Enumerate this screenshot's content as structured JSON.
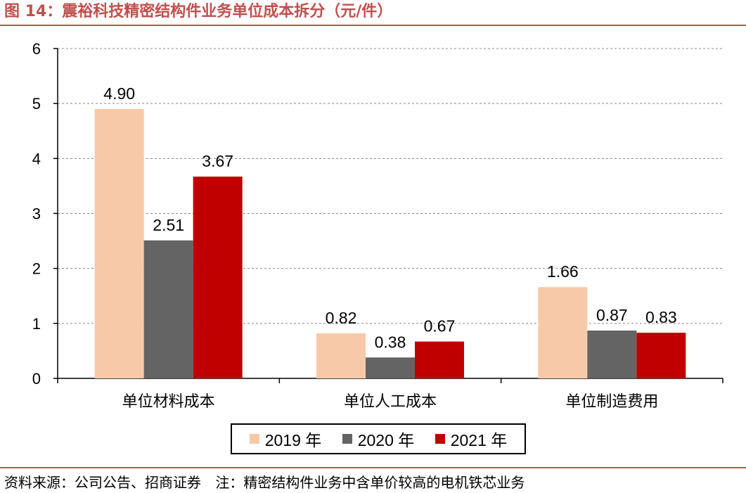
{
  "title": "图 14：震裕科技精密结构件业务单位成本拆分（元/件）",
  "colors": {
    "accent": "#c0504d",
    "s2019": "#f8c9a8",
    "s2020": "#646464",
    "s2021": "#c00000"
  },
  "chart_data": {
    "type": "bar",
    "categories": [
      "单位材料成本",
      "单位人工成本",
      "单位制造费用"
    ],
    "series": [
      {
        "name": "2019 年",
        "values": [
          4.9,
          0.82,
          1.66
        ],
        "labels": [
          "4.90",
          "0.82",
          "1.66"
        ]
      },
      {
        "name": "2020 年",
        "values": [
          2.51,
          0.38,
          0.87
        ],
        "labels": [
          "2.51",
          "0.38",
          "0.87"
        ]
      },
      {
        "name": "2021 年",
        "values": [
          3.67,
          0.67,
          0.83
        ],
        "labels": [
          "3.67",
          "0.67",
          "0.83"
        ]
      }
    ],
    "ylim": [
      0,
      6
    ],
    "yticks": [
      "0",
      "1",
      "2",
      "3",
      "4",
      "5",
      "6"
    ],
    "grid": true,
    "legend_position": "bottom"
  },
  "footer": {
    "source": "资料来源：公司公告、招商证券",
    "note": "注：精密结构件业务中含单价较高的电机铁芯业务"
  }
}
